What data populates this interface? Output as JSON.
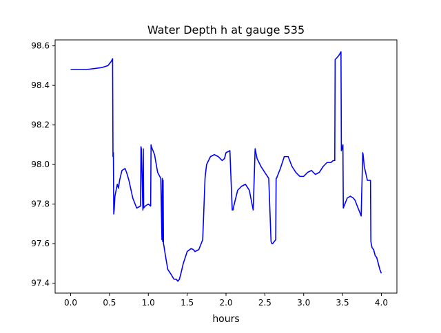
{
  "chart_data": {
    "type": "line",
    "title": "Water Depth h at gauge 535",
    "xlabel": "hours",
    "ylabel": "",
    "xlim": [
      -0.2,
      4.2
    ],
    "ylim": [
      97.35,
      98.63
    ],
    "x_ticks": [
      0.0,
      0.5,
      1.0,
      1.5,
      2.0,
      2.5,
      3.0,
      3.5,
      4.0
    ],
    "x_tick_labels": [
      "0.0",
      "0.5",
      "1.0",
      "1.5",
      "2.0",
      "2.5",
      "3.0",
      "3.5",
      "4.0"
    ],
    "y_ticks": [
      97.4,
      97.6,
      97.8,
      98.0,
      98.2,
      98.4,
      98.6
    ],
    "y_tick_labels": [
      "97.4",
      "97.6",
      "97.8",
      "98.0",
      "98.2",
      "98.4",
      "98.6"
    ],
    "grid": false,
    "legend": false,
    "series": [
      {
        "color": "#0000ff",
        "x": [
          0.0,
          0.1,
          0.2,
          0.3,
          0.4,
          0.48,
          0.52,
          0.54,
          0.545,
          0.55,
          0.555,
          0.56,
          0.57,
          0.6,
          0.615,
          0.63,
          0.66,
          0.7,
          0.72,
          0.75,
          0.8,
          0.85,
          0.9,
          0.905,
          0.91,
          0.93,
          0.935,
          0.94,
          0.96,
          1.0,
          1.03,
          1.035,
          1.04,
          1.08,
          1.12,
          1.16,
          1.175,
          1.18,
          1.185,
          1.19,
          1.195,
          1.2,
          1.22,
          1.25,
          1.3,
          1.33,
          1.36,
          1.38,
          1.4,
          1.42,
          1.45,
          1.5,
          1.55,
          1.58,
          1.6,
          1.65,
          1.7,
          1.73,
          1.735,
          1.75,
          1.8,
          1.85,
          1.9,
          1.95,
          1.98,
          2.0,
          2.05,
          2.08,
          2.09,
          2.1,
          2.15,
          2.2,
          2.25,
          2.3,
          2.35,
          2.375,
          2.38,
          2.4,
          2.45,
          2.5,
          2.55,
          2.58,
          2.59,
          2.6,
          2.64,
          2.645,
          2.65,
          2.7,
          2.75,
          2.8,
          2.85,
          2.9,
          2.95,
          3.0,
          3.05,
          3.1,
          3.15,
          3.2,
          3.25,
          3.3,
          3.35,
          3.38,
          3.4,
          3.405,
          3.45,
          3.48,
          3.485,
          3.5,
          3.505,
          3.51,
          3.53,
          3.56,
          3.6,
          3.64,
          3.66,
          3.7,
          3.74,
          3.76,
          3.765,
          3.78,
          3.82,
          3.86,
          3.865,
          3.88,
          3.9,
          3.92,
          3.94,
          3.96,
          3.98,
          4.0
        ],
        "values": [
          98.48,
          98.48,
          98.48,
          98.485,
          98.49,
          98.5,
          98.52,
          98.535,
          98.04,
          98.06,
          97.75,
          97.77,
          97.84,
          97.9,
          97.88,
          97.92,
          97.97,
          97.98,
          97.96,
          97.92,
          97.83,
          97.78,
          97.79,
          98.09,
          98.08,
          97.77,
          98.08,
          97.78,
          97.79,
          97.8,
          97.79,
          98.1,
          98.09,
          98.05,
          97.96,
          97.93,
          97.62,
          97.93,
          97.61,
          97.92,
          97.6,
          97.59,
          97.54,
          97.47,
          97.44,
          97.42,
          97.42,
          97.41,
          97.42,
          97.45,
          97.5,
          97.56,
          97.575,
          97.57,
          97.56,
          97.57,
          97.62,
          97.93,
          97.95,
          98.0,
          98.04,
          98.05,
          98.04,
          98.02,
          98.03,
          98.06,
          98.07,
          97.77,
          97.77,
          97.79,
          97.87,
          97.89,
          97.9,
          97.87,
          97.77,
          98.08,
          98.07,
          98.03,
          97.99,
          97.96,
          97.93,
          97.61,
          97.6,
          97.6,
          97.62,
          97.93,
          97.93,
          97.98,
          98.04,
          98.04,
          97.99,
          97.96,
          97.94,
          97.94,
          97.96,
          97.97,
          97.95,
          97.96,
          97.99,
          98.01,
          98.01,
          98.02,
          98.02,
          98.53,
          98.55,
          98.57,
          98.07,
          98.09,
          98.1,
          97.78,
          97.8,
          97.83,
          97.84,
          97.83,
          97.82,
          97.78,
          97.74,
          98.06,
          98.05,
          97.99,
          97.92,
          97.92,
          97.61,
          97.58,
          97.57,
          97.54,
          97.53,
          97.5,
          97.47,
          97.45
        ]
      }
    ]
  }
}
